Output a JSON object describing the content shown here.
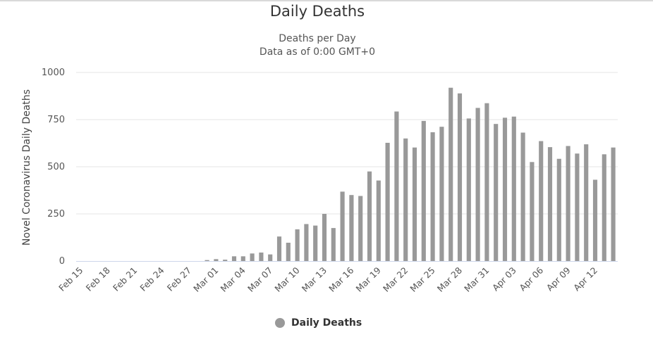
{
  "title": "Daily Deaths",
  "subtitle": [
    "Deaths per Day",
    "Data as of 0:00 GMT+0"
  ],
  "colors": {
    "bar": "#999999",
    "grid": "#e6e6e6",
    "axis": "#ccd6eb"
  },
  "chart_data": {
    "type": "bar",
    "title": "Daily Deaths",
    "subtitle": "Deaths per Day / Data as of 0:00 GMT+0",
    "ylabel": "Novel Coronavirus Daily Deaths",
    "xlabel": "",
    "ylim": [
      0,
      1000
    ],
    "yticks": [
      0,
      250,
      500,
      750,
      1000
    ],
    "grid": true,
    "legend_position": "bottom-center",
    "x_tick_labels": [
      "Feb 15",
      "Feb 18",
      "Feb 21",
      "Feb 24",
      "Feb 27",
      "Mar 01",
      "Mar 04",
      "Mar 07",
      "Mar 10",
      "Mar 13",
      "Mar 16",
      "Mar 19",
      "Mar 22",
      "Mar 25",
      "Mar 28",
      "Mar 31",
      "Apr 03",
      "Apr 06",
      "Apr 09",
      "Apr 12"
    ],
    "categories": [
      "Feb 15",
      "Feb 16",
      "Feb 17",
      "Feb 18",
      "Feb 19",
      "Feb 20",
      "Feb 21",
      "Feb 22",
      "Feb 23",
      "Feb 24",
      "Feb 25",
      "Feb 26",
      "Feb 27",
      "Feb 28",
      "Feb 29",
      "Mar 01",
      "Mar 02",
      "Mar 03",
      "Mar 04",
      "Mar 05",
      "Mar 06",
      "Mar 07",
      "Mar 08",
      "Mar 09",
      "Mar 10",
      "Mar 11",
      "Mar 12",
      "Mar 13",
      "Mar 14",
      "Mar 15",
      "Mar 16",
      "Mar 17",
      "Mar 18",
      "Mar 19",
      "Mar 20",
      "Mar 21",
      "Mar 22",
      "Mar 23",
      "Mar 24",
      "Mar 25",
      "Mar 26",
      "Mar 27",
      "Mar 28",
      "Mar 29",
      "Mar 30",
      "Mar 31",
      "Apr 01",
      "Apr 02",
      "Apr 03",
      "Apr 04",
      "Apr 05",
      "Apr 06",
      "Apr 07",
      "Apr 08",
      "Apr 09",
      "Apr 10",
      "Apr 11",
      "Apr 12",
      "Apr 13",
      "Apr 14"
    ],
    "series": [
      {
        "name": "Daily Deaths",
        "values": [
          0,
          0,
          0,
          0,
          0,
          0,
          0,
          0,
          0,
          0,
          0,
          0,
          0,
          0,
          5,
          10,
          7,
          25,
          25,
          40,
          45,
          35,
          130,
          97,
          168,
          196,
          188,
          250,
          175,
          368,
          350,
          345,
          475,
          427,
          627,
          793,
          650,
          602,
          743,
          683,
          712,
          919,
          889,
          756,
          812,
          837,
          727,
          760,
          766,
          681,
          525,
          636,
          604,
          542,
          610,
          570,
          619,
          431,
          566,
          602
        ]
      }
    ]
  },
  "legend": {
    "label": "Daily Deaths"
  }
}
